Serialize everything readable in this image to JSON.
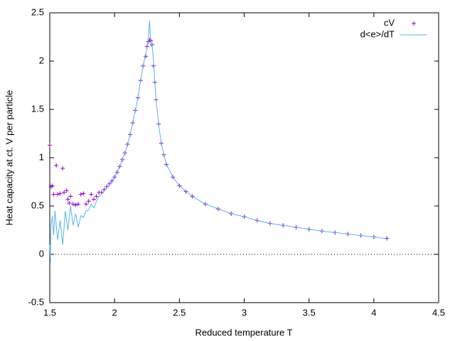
{
  "chart_data": {
    "type": "scatter-line",
    "xlabel": "Reduced temperature T",
    "ylabel": "Heat capacity at ct. V per particle",
    "xlim": [
      1.5,
      4.5
    ],
    "ylim": [
      -0.5,
      2.5
    ],
    "xticks": [
      1.5,
      2,
      2.5,
      3,
      3.5,
      4,
      4.5
    ],
    "yticks": [
      -0.5,
      0,
      0.5,
      1,
      1.5,
      2,
      2.5
    ],
    "zeroaxis": true,
    "legend": "top-right",
    "series": [
      {
        "name": "cV",
        "kind": "points",
        "color": "#9400d3",
        "x": [
          1.5,
          1.51,
          1.52,
          1.53,
          1.55,
          1.56,
          1.58,
          1.6,
          1.61,
          1.63,
          1.64,
          1.65,
          1.66,
          1.68,
          1.7,
          1.72,
          1.74,
          1.76,
          1.78,
          1.8,
          1.82,
          1.84,
          1.86,
          1.88,
          1.9,
          1.92,
          1.94,
          1.96,
          1.98,
          2.0,
          2.02,
          2.04,
          2.06,
          2.08,
          2.1,
          2.12,
          2.14,
          2.16,
          2.18,
          2.2,
          2.22,
          2.24,
          2.25,
          2.26,
          2.27,
          2.28,
          2.29,
          2.3,
          2.31,
          2.32,
          2.34,
          2.36,
          2.38,
          2.4,
          2.45,
          2.5,
          2.55,
          2.6,
          2.7,
          2.8,
          2.9,
          3.0,
          3.1,
          3.2,
          3.3,
          3.4,
          3.5,
          3.6,
          3.7,
          3.8,
          3.9,
          4.0,
          4.1
        ],
        "values": [
          1.13,
          0.7,
          0.71,
          0.62,
          0.92,
          0.62,
          0.63,
          0.89,
          0.64,
          0.66,
          0.57,
          0.53,
          0.6,
          0.52,
          0.51,
          0.52,
          0.62,
          0.63,
          0.52,
          0.55,
          0.62,
          0.57,
          0.6,
          0.64,
          0.64,
          0.67,
          0.7,
          0.73,
          0.76,
          0.8,
          0.85,
          0.91,
          0.98,
          1.05,
          1.14,
          1.24,
          1.36,
          1.49,
          1.62,
          1.8,
          1.95,
          2.05,
          2.15,
          2.2,
          2.22,
          2.21,
          2.17,
          1.95,
          1.78,
          1.6,
          1.35,
          1.15,
          1.03,
          0.93,
          0.8,
          0.71,
          0.65,
          0.6,
          0.52,
          0.47,
          0.42,
          0.39,
          0.35,
          0.32,
          0.3,
          0.28,
          0.26,
          0.24,
          0.225,
          0.21,
          0.195,
          0.18,
          0.165
        ]
      },
      {
        "name": "d<e>/dT",
        "kind": "line",
        "color": "#56b4e9",
        "x": [
          1.5,
          1.505,
          1.51,
          1.52,
          1.53,
          1.54,
          1.56,
          1.58,
          1.6,
          1.62,
          1.64,
          1.66,
          1.68,
          1.7,
          1.72,
          1.74,
          1.76,
          1.78,
          1.8,
          1.82,
          1.84,
          1.86,
          1.88,
          1.9,
          1.92,
          1.94,
          1.96,
          1.98,
          2.0,
          2.02,
          2.04,
          2.06,
          2.08,
          2.1,
          2.12,
          2.14,
          2.16,
          2.18,
          2.2,
          2.22,
          2.24,
          2.25,
          2.26,
          2.27,
          2.28,
          2.29,
          2.3,
          2.31,
          2.32,
          2.34,
          2.36,
          2.38,
          2.4,
          2.45,
          2.5,
          2.55,
          2.6,
          2.7,
          2.8,
          2.9,
          3.0,
          3.1,
          3.2,
          3.3,
          3.4,
          3.5,
          3.6,
          3.7,
          3.8,
          3.9,
          4.0,
          4.1
        ],
        "values": [
          0.1,
          -0.09,
          0.3,
          0.4,
          0.2,
          0.45,
          0.15,
          0.35,
          0.1,
          0.45,
          0.25,
          0.5,
          0.3,
          0.42,
          0.28,
          0.4,
          0.38,
          0.45,
          0.46,
          0.52,
          0.48,
          0.55,
          0.6,
          0.62,
          0.66,
          0.69,
          0.72,
          0.76,
          0.8,
          0.85,
          0.91,
          0.98,
          1.05,
          1.14,
          1.24,
          1.36,
          1.49,
          1.62,
          1.8,
          1.95,
          2.08,
          2.12,
          2.22,
          2.42,
          2.15,
          2.17,
          2.0,
          1.8,
          1.6,
          1.35,
          1.15,
          1.03,
          0.93,
          0.8,
          0.71,
          0.65,
          0.6,
          0.52,
          0.47,
          0.42,
          0.39,
          0.35,
          0.32,
          0.3,
          0.28,
          0.26,
          0.24,
          0.225,
          0.21,
          0.195,
          0.18,
          0.16
        ]
      }
    ]
  }
}
